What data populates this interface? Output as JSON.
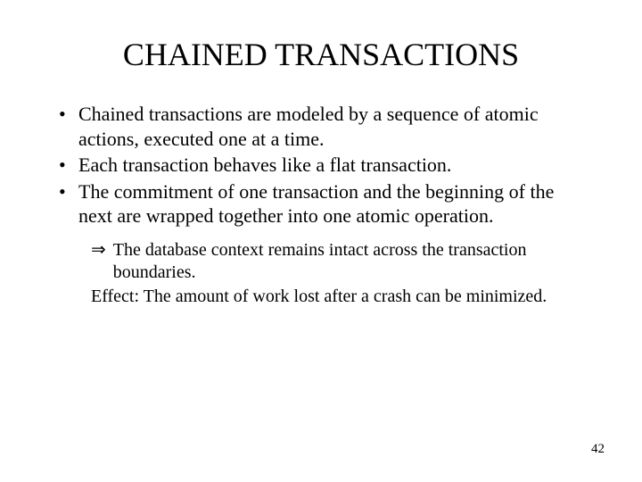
{
  "title": "CHAINED TRANSACTIONS",
  "bullets": [
    "Chained transactions are modeled by a sequence of atomic actions, executed one at a time.",
    "Each transaction behaves like a flat transaction.",
    "The commitment of one transaction and the beginning of the next are wrapped together into one atomic operation."
  ],
  "sub": {
    "arrow": "⇒",
    "text": "The database context remains intact across the transaction boundaries.",
    "effect": "Effect: The amount of work lost after a crash can be minimized."
  },
  "pageNumber": "42"
}
